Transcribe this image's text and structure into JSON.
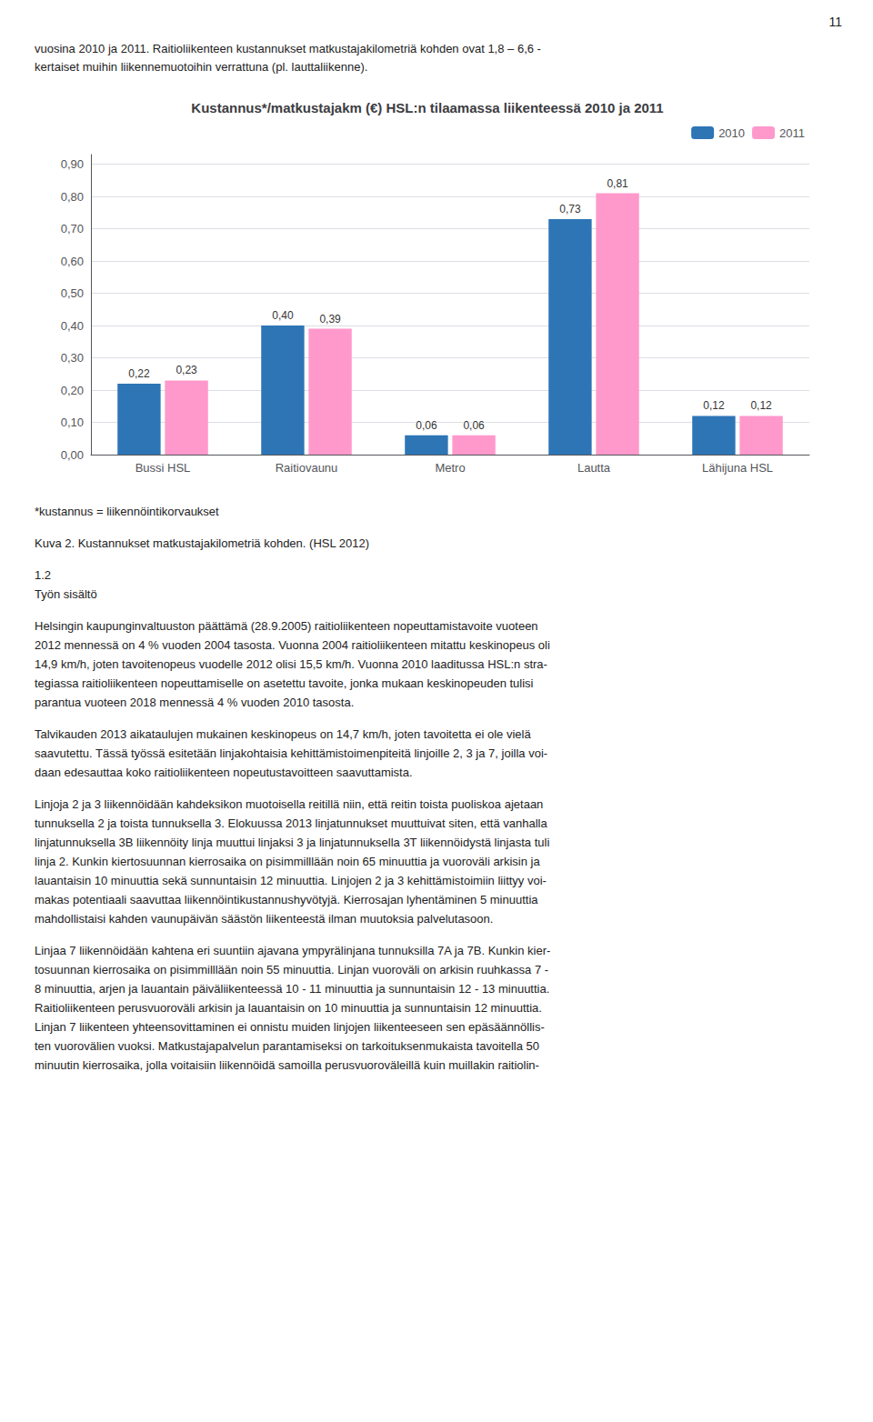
{
  "chart_data": {
    "type": "bar",
    "title": "Kustannus*/matkustajakm (€) HSL:n tilaamassa liikenteessä 2010 ja 2011",
    "categories": [
      "Bussi HSL",
      "Raitiovaunu",
      "Metro",
      "Lautta",
      "Lähijuna HSL"
    ],
    "series": [
      {
        "name": "2010",
        "color": "#2E75B6",
        "values": [
          0.22,
          0.4,
          0.06,
          0.73,
          0.12
        ],
        "value_labels": [
          "0,22",
          "0,40",
          "0,06",
          "0,73",
          "0,12"
        ]
      },
      {
        "name": "2011",
        "color": "#FF99CC",
        "values": [
          0.23,
          0.39,
          0.06,
          0.81,
          0.12
        ],
        "value_labels": [
          "0,23",
          "0,39",
          "0,06",
          "0,81",
          "0,12"
        ]
      }
    ],
    "ylim": [
      0,
      0.93
    ],
    "yticks": [
      {
        "value": 0.0,
        "label": "0,00"
      },
      {
        "value": 0.1,
        "label": "0,10"
      },
      {
        "value": 0.2,
        "label": "0,20"
      },
      {
        "value": 0.3,
        "label": "0,30"
      },
      {
        "value": 0.4,
        "label": "0,40"
      },
      {
        "value": 0.5,
        "label": "0,50"
      },
      {
        "value": 0.6,
        "label": "0,60"
      },
      {
        "value": 0.7,
        "label": "0,70"
      },
      {
        "value": 0.8,
        "label": "0,80"
      },
      {
        "value": 0.9,
        "label": "0,90"
      }
    ],
    "grid": true,
    "legend": "upper right",
    "data_labels": true,
    "annotations": [
      [
        "11"
      ],
      [
        "vuosina 2010 ja 2011. Raitioliikenteen kustannukset matkustajakilometriä kohden ovat 1,8 – 6,6 -",
        "kertaiset muihin liikennemuotoihin verrattuna (pl. lauttaliikenne)."
      ],
      [
        "*kustannus = liikennöintikorvaukset"
      ],
      [
        "Kuva 2. Kustannukset matkustajakilometriä kohden. (HSL 2012)"
      ],
      [
        "1.2",
        "Työn sisältö"
      ],
      [
        "Helsingin kaupunginvaltuuston päättämä (28.9.2005) raitioliikenteen nopeuttamistavoite vuoteen",
        "2012 mennessä on 4 % vuoden 2004 tasosta. Vuonna 2004 raitioliikenteen mitattu keskinopeus oli",
        "14,9 km/h, joten tavoitenopeus vuodelle 2012 olisi 15,5 km/h. Vuonna 2010 laaditussa HSL:n stra-",
        "tegiassa raitioliikenteen nopeuttamiselle on asetettu tavoite, jonka mukaan keskinopeuden tulisi",
        "parantua vuoteen 2018 mennessä 4 % vuoden 2010 tasosta."
      ],
      [
        "Talvikauden 2013 aikataulujen mukainen keskinopeus on 14,7 km/h, joten tavoitetta ei ole vielä",
        "saavutettu. Tässä työssä esitetään linjakohtaisia kehittämistoimenpiteitä linjoille 2, 3 ja 7, joilla voi-",
        "daan edesauttaa koko raitioliikenteen nopeutustavoitteen saavuttamista."
      ],
      [
        "Linjoja 2 ja 3 liikennöidään kahdeksikon muotoisella reitillä niin, että reitin toista puoliskoa ajetaan",
        "tunnuksella 2 ja toista tunnuksella 3. Elokuussa 2013 linjatunnukset muuttuivat siten, että vanhalla",
        "linjatunnuksella 3B liikennöity linja muuttui linjaksi 3 ja linjatunnuksella 3T liikennöidystä linjasta tuli",
        "linja 2. Kunkin kiertosuunnan kierrosaika on pisimmilllään noin 65 minuuttia ja vuoroväli arkisin ja",
        "lauantaisin 10 minuuttia sekä sunnuntaisin 12 minuuttia. Linjojen 2 ja 3 kehittämistoimiin liittyy voi-",
        "makas potentiaali saavuttaa liikennöintikustannushyvötyjä. Kierrosajan lyhentäminen 5 minuuttia",
        "mahdollistaisi kahden vaunupäivän säästön liikenteestä ilman muutoksia palvelutasoon."
      ],
      [
        "Linjaa 7 liikennöidään kahtena eri suuntiin ajavana ympyrälinjana tunnuksilla 7A ja 7B. Kunkin kier-",
        "tosuunnan kierrosaika on pisimmilllään noin 55 minuuttia. Linjan vuoroväli on arkisin ruuhkassa 7 -",
        "8 minuuttia, arjen ja lauantain päiväliikenteessä 10 - 11 minuuttia ja sunnuntaisin 12 - 13 minuuttia.",
        "Raitioliikenteen perusvuoroväli arkisin ja lauantaisin on 10 minuuttia ja sunnuntaisin 12 minuuttia.",
        "Linjan 7 liikenteen yhteensovittaminen ei onnistu muiden linjojen liikenteeseen sen epäsäännöllis-",
        "ten vuorovälien vuoksi. Matkustajapalvelun parantamiseksi on tarkoituksenmukaista tavoitella 50",
        "minuutin kierrosaika, jolla voitaisiin liikennöidä samoilla perusvuoroväleillä kuin muillakin raitiolin-"
      ]
    ]
  }
}
